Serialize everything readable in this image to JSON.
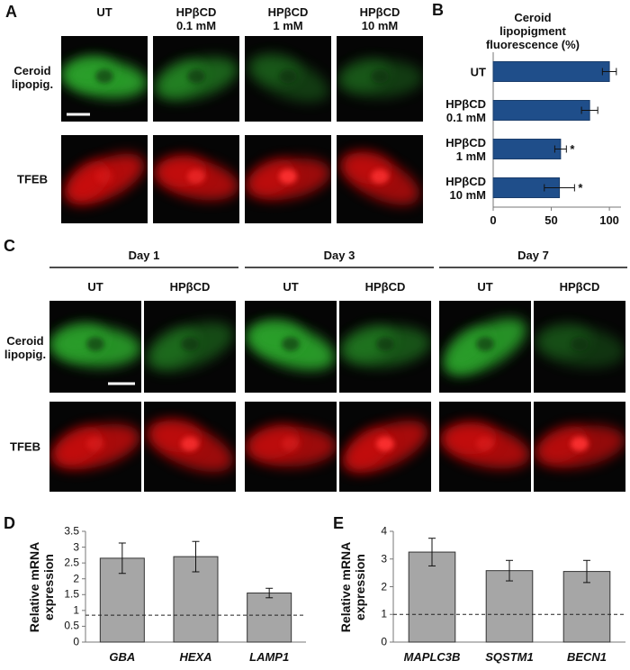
{
  "panel_labels": [
    "A",
    "B",
    "C",
    "D",
    "E"
  ],
  "panel_a": {
    "columns": [
      "UT",
      "HPβCD\n0.1 mM",
      "HPβCD\n1 mM",
      "HPβCD\n10 mM"
    ],
    "rows": [
      "Ceroid\nlipopig.",
      "TFEB"
    ]
  },
  "panel_c": {
    "groups": [
      "Day 1",
      "Day 3",
      "Day 7"
    ],
    "columns": [
      "UT",
      "HPβCD",
      "UT",
      "HPβCD",
      "UT",
      "HPβCD"
    ],
    "rows": [
      "Ceroid\nlipopig.",
      "TFEB"
    ]
  },
  "chart_data": [
    {
      "type": "hbar",
      "title": "Ceroid lipopigment\nfluorescence (%)",
      "categories": [
        "UT",
        "HPβCD\n0.1 mM",
        "HPβCD\n1 mM",
        "HPβCD\n10 mM"
      ],
      "values": [
        100,
        83,
        58,
        57
      ],
      "errors": [
        6,
        7,
        5,
        13
      ],
      "annotations": [
        {
          "index": 2,
          "text": "*"
        },
        {
          "index": 3,
          "text": "*"
        }
      ],
      "color": "#1f4e8a",
      "xlim": [
        0,
        110
      ],
      "xticks": [
        0,
        50,
        100
      ]
    },
    {
      "type": "bar",
      "y_label": "Relative mRNA\nexpression",
      "categories": [
        "GBA",
        "HEXA",
        "LAMP1"
      ],
      "values": [
        2.65,
        2.7,
        1.55
      ],
      "errors": [
        0.48,
        0.48,
        0.15
      ],
      "color": "#a6a6a6",
      "ylim": [
        0,
        3.5
      ],
      "yticks": [
        0,
        0.5,
        1,
        1.5,
        2,
        2.5,
        3,
        3.5
      ],
      "reference_line": 0.85
    },
    {
      "type": "bar",
      "y_label": "Relative mRNA\nexpression",
      "categories": [
        "MAPLC3B",
        "SQSTM1",
        "BECN1"
      ],
      "values": [
        3.25,
        2.58,
        2.55
      ],
      "errors": [
        0.5,
        0.37,
        0.4
      ],
      "color": "#a6a6a6",
      "ylim": [
        0,
        4
      ],
      "yticks": [
        0,
        1,
        2,
        3,
        4
      ],
      "reference_line": 1
    }
  ]
}
